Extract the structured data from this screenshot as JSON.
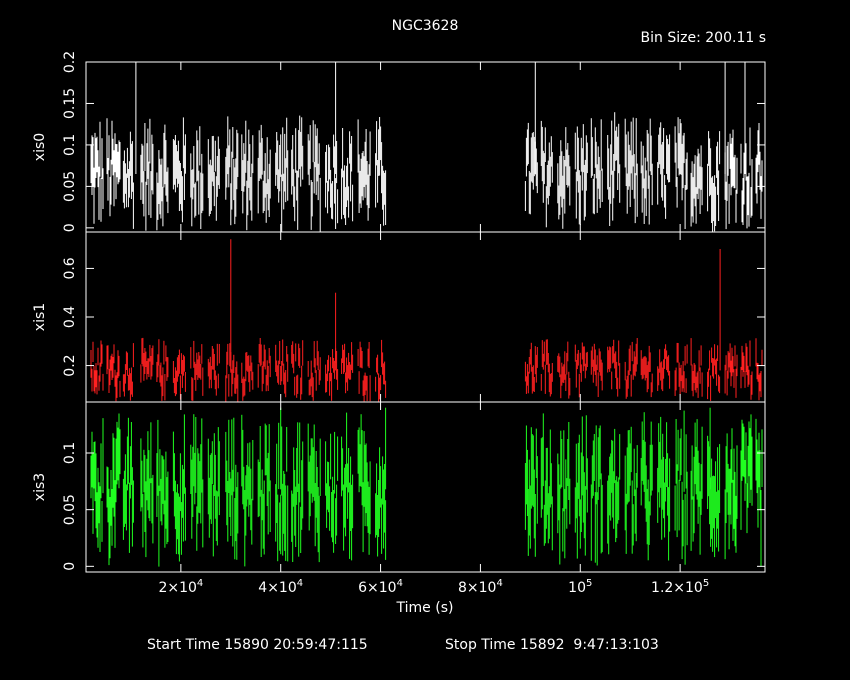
{
  "title": "NGC3628",
  "bin_size": "Bin Size: 200.11 s",
  "xlabel": "Time (s)",
  "start_time": "Start Time 15890 20:59:47:115",
  "stop_time": "Stop Time 15892  9:47:13:103",
  "colors": {
    "background": "#000000",
    "frame": "#ffffff",
    "xis0": "#ffffff",
    "xis1": "#ff2020",
    "xis3": "#20ff20"
  },
  "chart_data": {
    "type": "scatter",
    "x_axis": {
      "range": [
        1000,
        137000
      ],
      "ticks": [
        {
          "value": 20000,
          "mant": "2",
          "exp": "4"
        },
        {
          "value": 40000,
          "mant": "4",
          "exp": "4"
        },
        {
          "value": 60000,
          "mant": "6",
          "exp": "4"
        },
        {
          "value": 80000,
          "mant": "8",
          "exp": "4"
        },
        {
          "value": 100000,
          "mant": "",
          "exp": "5"
        },
        {
          "value": 120000,
          "mant": "1.2",
          "exp": "5"
        }
      ]
    },
    "panels": [
      {
        "name": "xis0",
        "ylim": [
          -0.005,
          0.2
        ],
        "ytick_values": [
          0,
          0.05,
          0.1,
          0.15,
          0.2
        ],
        "ytick_labels": [
          "0",
          "0.05",
          "0.1",
          "0.15",
          "0.2"
        ],
        "base": 0.065,
        "spread": 0.05,
        "err": 0.03,
        "spikes": [
          [
            11000,
            0.2
          ],
          [
            51000,
            0.2
          ],
          [
            91000,
            0.2
          ],
          [
            129000,
            0.2
          ],
          [
            133000,
            0.2
          ]
        ]
      },
      {
        "name": "xis1",
        "ylim": [
          0.05,
          0.75
        ],
        "ytick_values": [
          0.2,
          0.4,
          0.6
        ],
        "ytick_labels": [
          "0.2",
          "0.4",
          "0.6"
        ],
        "base": 0.18,
        "spread": 0.1,
        "err": 0.05,
        "spikes": [
          [
            30000,
            0.72
          ],
          [
            51000,
            0.5
          ],
          [
            128000,
            0.68
          ]
        ]
      },
      {
        "name": "xis3",
        "ylim": [
          -0.005,
          0.145
        ],
        "ytick_values": [
          0,
          0.05,
          0.1
        ],
        "ytick_labels": [
          "0",
          "0.05",
          "0.1"
        ],
        "base": 0.068,
        "spread": 0.045,
        "err": 0.03,
        "spikes": [
          [
            40000,
            0.14
          ],
          [
            61000,
            0.14
          ],
          [
            126000,
            0.14
          ]
        ]
      }
    ],
    "segments": [
      [
        2000,
        4500
      ],
      [
        5200,
        7800
      ],
      [
        8500,
        10500
      ],
      [
        12000,
        14500
      ],
      [
        15200,
        17500
      ],
      [
        18500,
        21000
      ],
      [
        22000,
        24500
      ],
      [
        25500,
        27800
      ],
      [
        29000,
        31500
      ],
      [
        32200,
        34500
      ],
      [
        35500,
        38000
      ],
      [
        39000,
        41500
      ],
      [
        42200,
        44500
      ],
      [
        45500,
        48000
      ],
      [
        49000,
        51500
      ],
      [
        52200,
        54500
      ],
      [
        55500,
        58000
      ],
      [
        59000,
        61000
      ],
      [
        89000,
        91500
      ],
      [
        92200,
        94500
      ],
      [
        95500,
        98000
      ],
      [
        99000,
        101500
      ],
      [
        102200,
        104500
      ],
      [
        105500,
        108000
      ],
      [
        109000,
        111500
      ],
      [
        112200,
        114500
      ],
      [
        115500,
        118000
      ],
      [
        119000,
        121500
      ],
      [
        122200,
        124500
      ],
      [
        125500,
        128000
      ],
      [
        129000,
        131500
      ],
      [
        132200,
        134500
      ],
      [
        135200,
        136500
      ]
    ]
  }
}
